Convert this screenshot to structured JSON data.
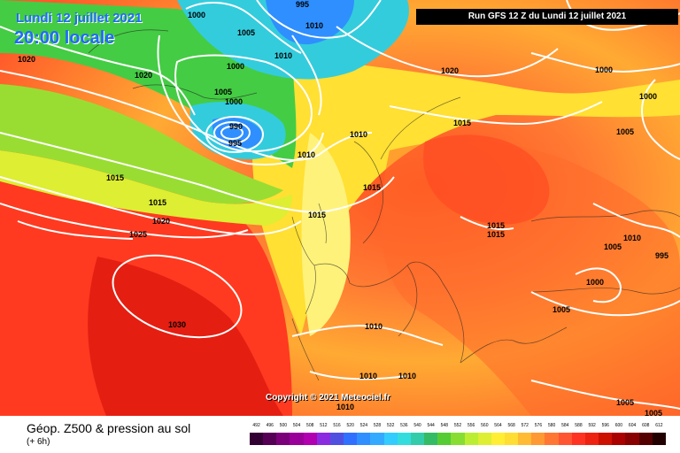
{
  "header": {
    "date_label": "Lundi 12 juillet 2021",
    "time_label": "20:00 locale",
    "run_label": "Run GFS 12 Z du Lundi 12 juillet 2021"
  },
  "footer": {
    "title": "Géop. Z500 & pression au sol",
    "subtitle": "(+ 6h)",
    "copyright": "Copyright © 2021 Meteociel.fr"
  },
  "legend": {
    "labels": [
      "492",
      "496",
      "500",
      "504",
      "508",
      "512",
      "516",
      "520",
      "524",
      "528",
      "532",
      "536",
      "540",
      "544",
      "548",
      "552",
      "556",
      "560",
      "564",
      "568",
      "572",
      "576",
      "580",
      "584",
      "588",
      "592",
      "596",
      "600",
      "604",
      "608",
      "612"
    ],
    "colors": [
      "#330033",
      "#550055",
      "#7a007a",
      "#990099",
      "#b000b0",
      "#8a2be2",
      "#5050e0",
      "#3070ff",
      "#2f8fff",
      "#33aaff",
      "#33ccff",
      "#33dddd",
      "#33ccaa",
      "#33bb66",
      "#55cc33",
      "#88dd33",
      "#bbee33",
      "#ddee33",
      "#ffee33",
      "#ffdd33",
      "#ffbb33",
      "#ff9933",
      "#ff7733",
      "#ff5533",
      "#ff3322",
      "#ee2211",
      "#cc1100",
      "#aa0000",
      "#880000",
      "#550000",
      "#220000"
    ]
  },
  "pressure_labels": [
    "1000",
    "995",
    "1005",
    "1010",
    "1000",
    "1005",
    "1020",
    "1020",
    "1000",
    "990",
    "995",
    "1010",
    "1010",
    "1010",
    "1020",
    "1015",
    "1015",
    "1015",
    "1015",
    "1020",
    "1025",
    "1015",
    "1000",
    "1000",
    "1005",
    "1015",
    "1015",
    "1010",
    "1005",
    "995",
    "1000",
    "1005",
    "1030",
    "1010",
    "1010",
    "1010",
    "1010",
    "1005",
    "1005"
  ]
}
